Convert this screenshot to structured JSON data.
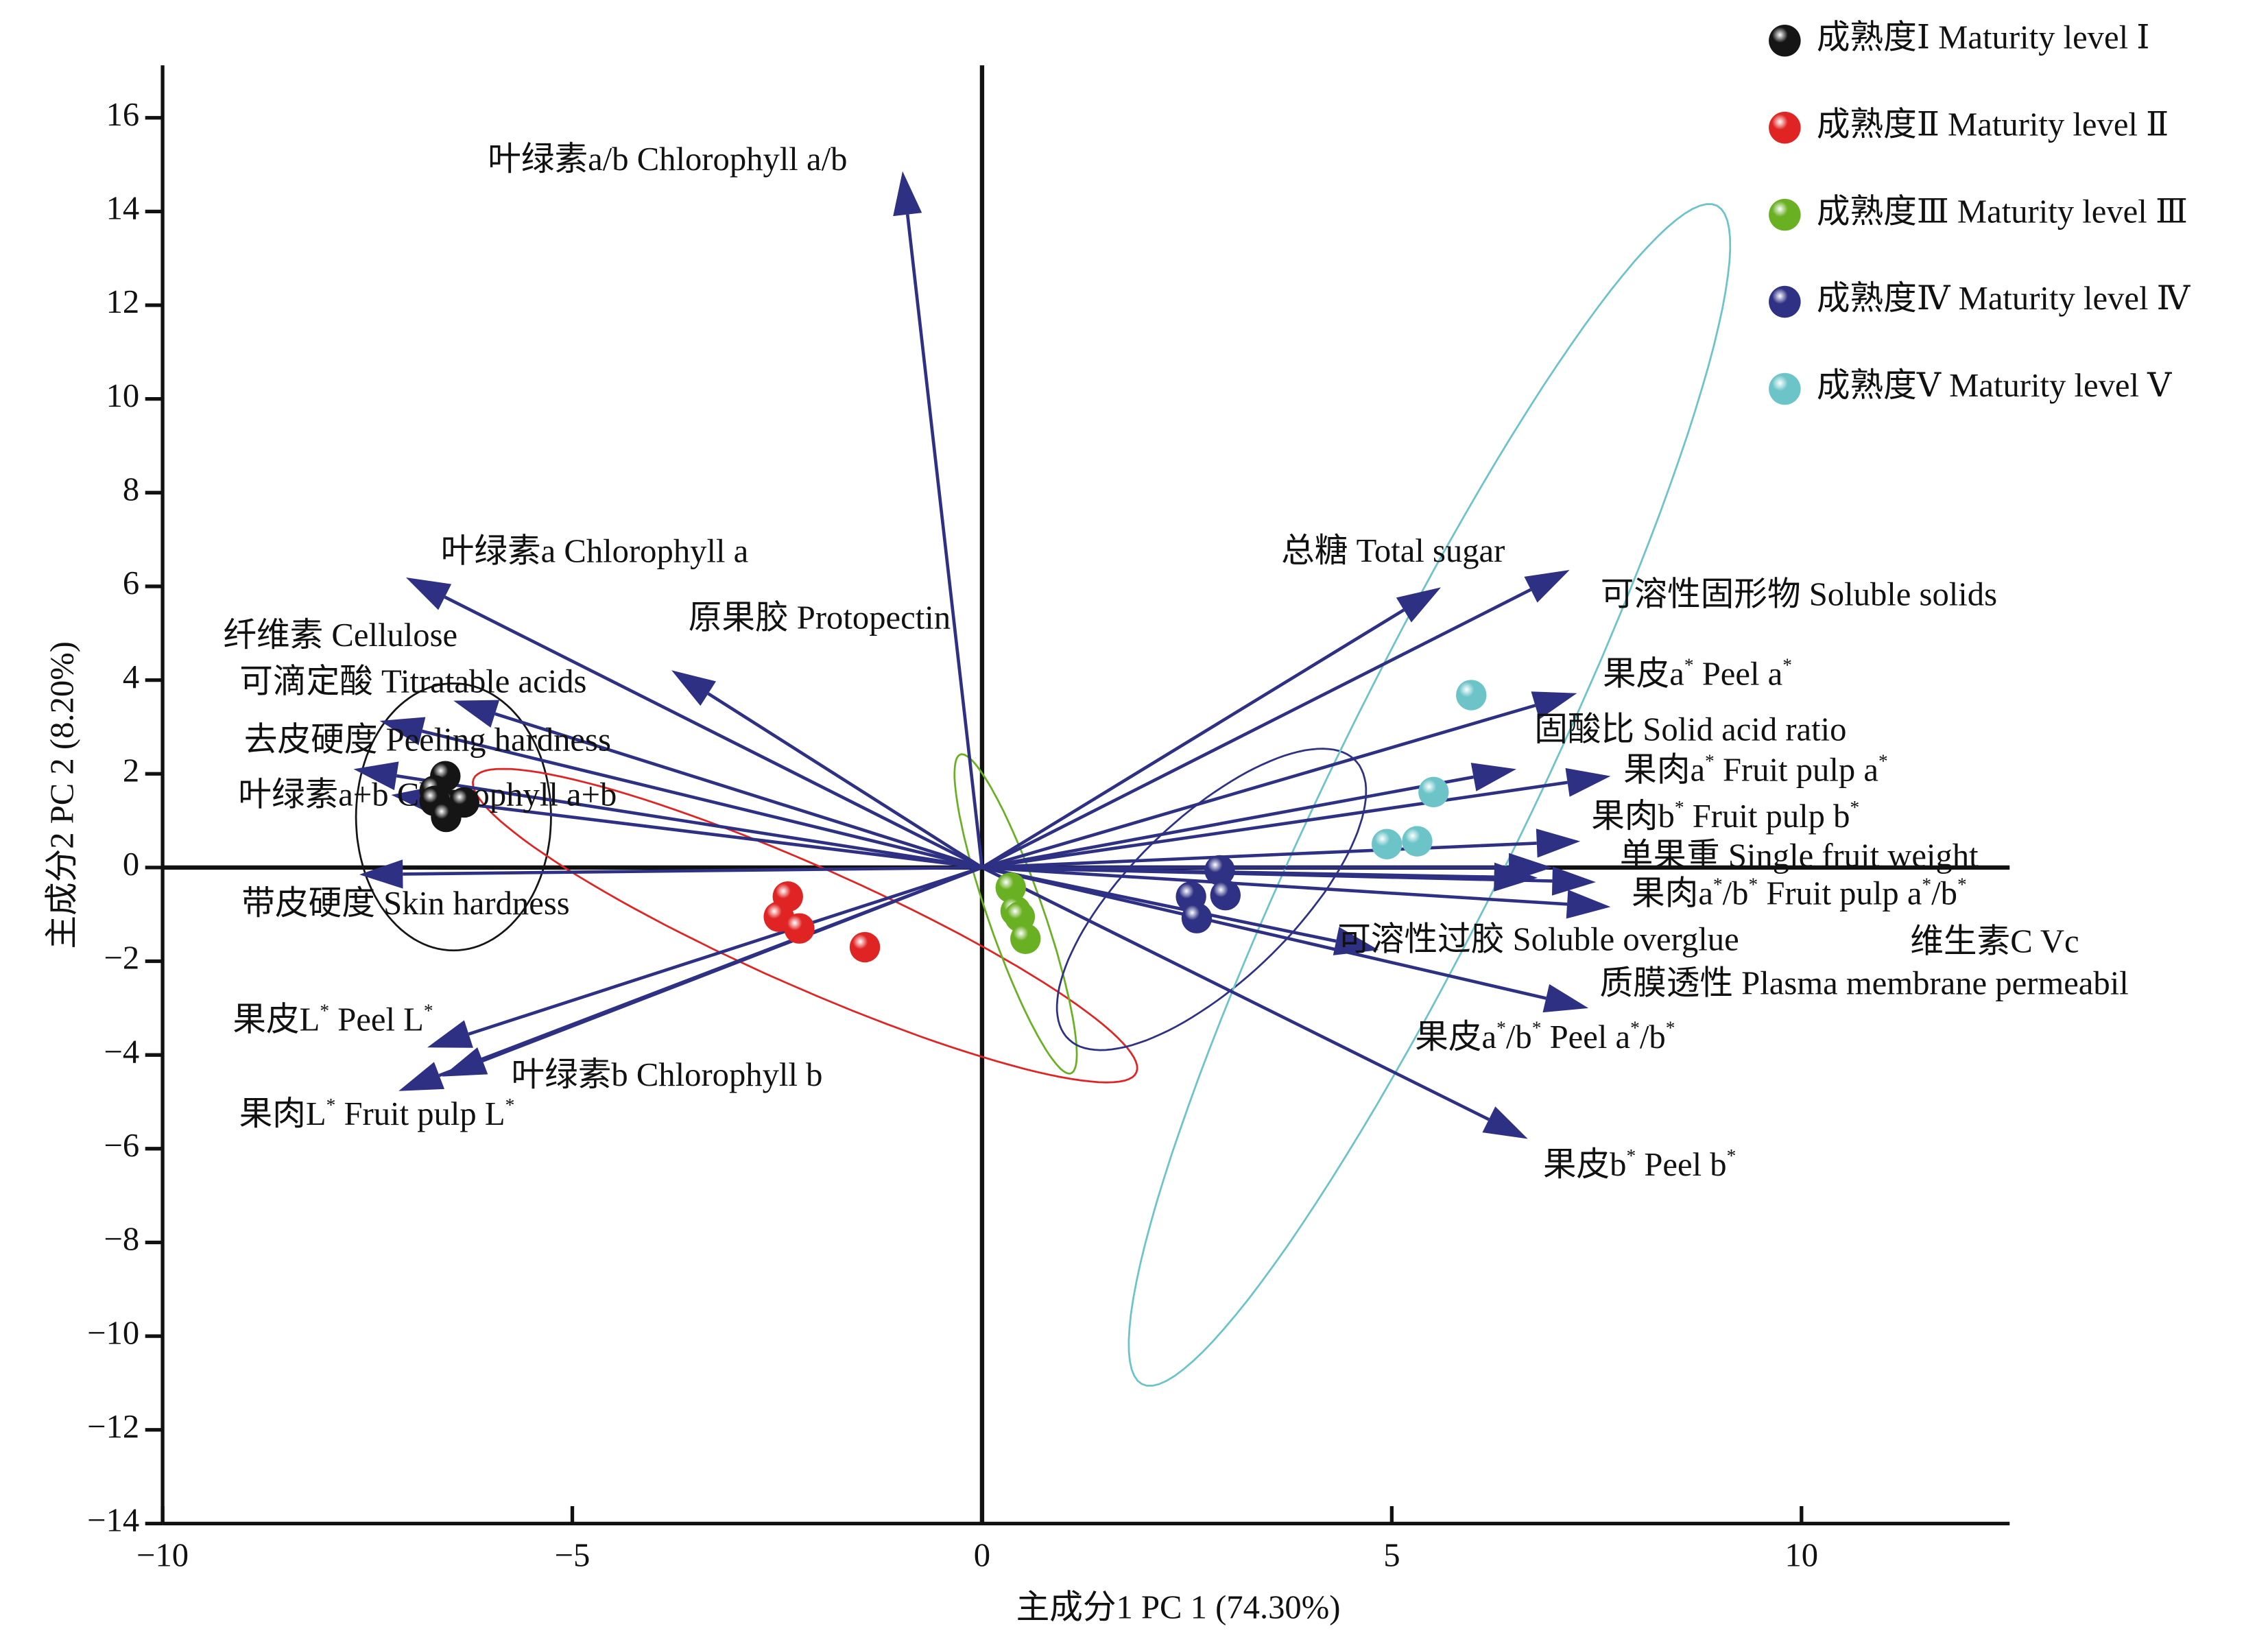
{
  "chart_data": {
    "type": "biplot",
    "xlabel": "主成分1 PC 1 (74.30%)",
    "ylabel": "主成分2 PC 2 (8.20%)",
    "xlim": [
      -10,
      12.54
    ],
    "ylim": [
      -14,
      17.12
    ],
    "xticks": [
      {
        "value": -10,
        "label": "−10"
      },
      {
        "value": -5,
        "label": "−5"
      },
      0,
      5,
      10
    ],
    "yticks": [
      {
        "value": -14,
        "label": "−14"
      },
      {
        "value": -12,
        "label": "−12"
      },
      {
        "value": -10,
        "label": "−10"
      },
      {
        "value": -8,
        "label": "−8"
      },
      {
        "value": -6,
        "label": "−6"
      },
      {
        "value": -4,
        "label": "−4"
      },
      {
        "value": -2,
        "label": "−2"
      },
      0,
      2,
      4,
      6,
      8,
      10,
      12,
      14,
      16
    ],
    "series": [
      {
        "name": "成熟度Ⅰ Maturity level Ⅰ",
        "color": "#151515",
        "x": [
          -6.55,
          -6.68,
          -6.5,
          -6.32,
          -6.68,
          -6.54
        ],
        "y": [
          1.95,
          1.64,
          1.33,
          1.39,
          1.42,
          1.08
        ],
        "ellipse": {
          "cx": -6.45,
          "cy": 1.08,
          "a": 2.85,
          "b": 1.19,
          "angle": 90
        }
      },
      {
        "name": "成熟度Ⅱ Maturity level Ⅱ",
        "color": "#e02424",
        "x": [
          -2.37,
          -2.48,
          -2.23,
          -1.43
        ],
        "y": [
          -0.62,
          -1.05,
          -1.3,
          -1.7
        ],
        "ellipse": {
          "cx": -2.16,
          "cy": -1.24,
          "a": 5.14,
          "b": 1.1,
          "angle": -39
        }
      },
      {
        "name": "成熟度Ⅲ Maturity level Ⅲ",
        "color": "#6ab023",
        "x": [
          0.35,
          0.41,
          0.46,
          0.53
        ],
        "y": [
          -0.43,
          -0.93,
          -1.05,
          -1.52
        ],
        "ellipse": {
          "cx": 0.41,
          "cy": -0.99,
          "a": 3.47,
          "b": 0.35,
          "angle": -79
        }
      },
      {
        "name": "成熟度Ⅳ Maturity level Ⅳ",
        "color": "#2f3184",
        "x": [
          2.9,
          2.97,
          2.55,
          2.62
        ],
        "y": [
          -0.06,
          -0.59,
          -0.62,
          -1.08
        ],
        "ellipse": {
          "cx": 2.8,
          "cy": -0.68,
          "a": 3.53,
          "b": 1.2,
          "angle": 64
        }
      },
      {
        "name": "成熟度Ⅴ Maturity level Ⅴ",
        "color": "#6cc4c8",
        "x": [
          5.97,
          5.51,
          5.31,
          4.94
        ],
        "y": [
          3.68,
          1.61,
          0.56,
          0.5
        ],
        "ellipse": {
          "cx": 5.46,
          "cy": 1.55,
          "a": 13.07,
          "b": 1.3,
          "angle": 74.7
        }
      }
    ],
    "loading_color": "#2e3183",
    "loadings": [
      {
        "label": "叶绿素a/b Chlorophyll a/b",
        "x": -0.97,
        "y": 14.86
      },
      {
        "label": "叶绿素a Chlorophyll a",
        "x": -7.03,
        "y": 6.19
      },
      {
        "label": "原果胶  Protopectin",
        "x": -3.79,
        "y": 4.21
      },
      {
        "label": "纤维素  Cellulose",
        "x": -6.45,
        "y": 3.56
      },
      {
        "label": "可滴定酸  Titratable acids",
        "x": -7.35,
        "y": 3.13
      },
      {
        "label": "去皮硬度 Peeling hardness",
        "x": -7.67,
        "y": 2.1
      },
      {
        "label": "叶绿素a+b Chlorophyll a+b",
        "x": -7.21,
        "y": 1.55
      },
      {
        "label": "带皮硬度 Skin hardness",
        "x": -7.6,
        "y": -0.15
      },
      {
        "label": "果皮L* Peel L*",
        "x": -6.77,
        "y": -3.84
      },
      {
        "label": "果肉L* Fruit pulp L*",
        "x": -7.12,
        "y": -4.77
      },
      {
        "label": "叶绿素b Chlorophyll b",
        "x": -6.59,
        "y": -4.46
      },
      {
        "label": "总糖 Total sugar",
        "x": 5.6,
        "y": 5.98
      },
      {
        "label": "可溶性固形物 Soluble solids",
        "x": 7.17,
        "y": 6.35
      },
      {
        "label": "果皮a* Peel a*",
        "x": 7.26,
        "y": 3.72
      },
      {
        "label": "固酸比 Solid acid ratio",
        "x": 6.52,
        "y": 2.1
      },
      {
        "label": "果肉a* Fruit pulp a*",
        "x": 7.67,
        "y": 1.95
      },
      {
        "label": "果肉b* Fruit pulp b*",
        "x": 7.3,
        "y": 0.56
      },
      {
        "label": "单果重 Single fruit weight",
        "x": 6.96,
        "y": 0
      },
      {
        "label": "果肉a*/b* Fruit pulp a*/b*",
        "x": 7.67,
        "y": -0.84
      },
      {
        "label": "维生素C Vc",
        "x": 6.78,
        "y": -0.22
      },
      {
        "label": "可溶性过胶 Soluble overglue",
        "x": 4.84,
        "y": -1.76
      },
      {
        "label": "质膜透性 Plasma membrane permeabil",
        "x": 7.4,
        "y": -3.0
      },
      {
        "label": "果皮a*/b* Peel a*/b*",
        "x": 7.49,
        "y": -0.31
      },
      {
        "label": "果皮b* Peel b*",
        "x": 6.66,
        "y": -5.79
      }
    ]
  }
}
